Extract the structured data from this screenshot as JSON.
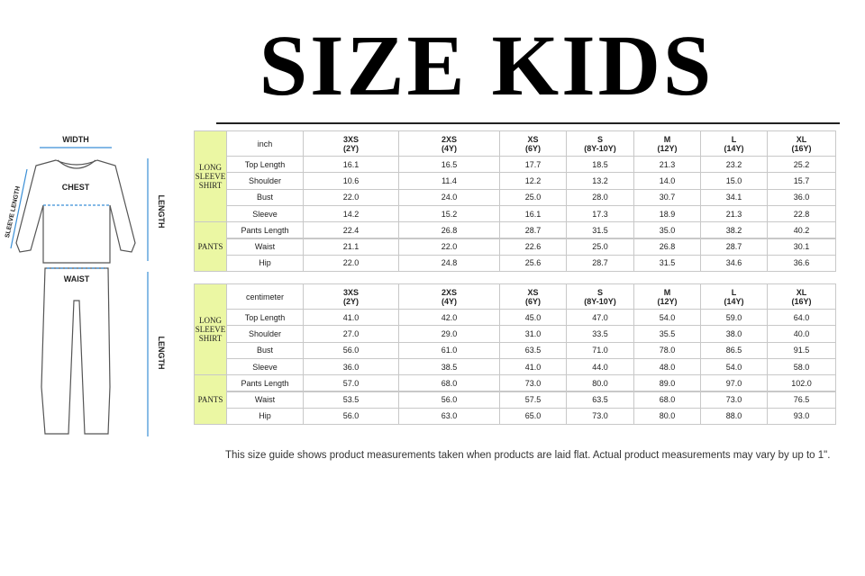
{
  "header": {
    "title": "SIZE KIDS"
  },
  "diagram": {
    "width": "WIDTH",
    "chest": "CHEST",
    "sleeve_length": "SLEEVE LENGTH",
    "shirt_length": "LENGTH",
    "waist": "WAIST",
    "pants_length": "LENGTH"
  },
  "tables": [
    {
      "unit": "inch",
      "sizes": [
        {
          "size": "3XS",
          "age": "(2Y)"
        },
        {
          "size": "2XS",
          "age": "(4Y)"
        },
        {
          "size": "XS",
          "age": "(6Y)"
        },
        {
          "size": "S",
          "age": "(8Y-10Y)"
        },
        {
          "size": "M",
          "age": "(12Y)"
        },
        {
          "size": "L",
          "age": "(14Y)"
        },
        {
          "size": "XL",
          "age": "(16Y)"
        }
      ],
      "groups": [
        {
          "label": "LONG SLEEVE SHIRT",
          "rows": [
            {
              "label": "Top Length",
              "values": [
                "16.1",
                "16.5",
                "17.7",
                "18.5",
                "21.3",
                "23.2",
                "25.2"
              ]
            },
            {
              "label": "Shoulder",
              "values": [
                "10.6",
                "11.4",
                "12.2",
                "13.2",
                "14.0",
                "15.0",
                "15.7"
              ]
            },
            {
              "label": "Bust",
              "values": [
                "22.0",
                "24.0",
                "25.0",
                "28.0",
                "30.7",
                "34.1",
                "36.0"
              ]
            },
            {
              "label": "Sleeve",
              "values": [
                "14.2",
                "15.2",
                "16.1",
                "17.3",
                "18.9",
                "21.3",
                "22.8"
              ]
            }
          ]
        },
        {
          "label": "PANTS",
          "rows": [
            {
              "label": "Pants Length",
              "values": [
                "22.4",
                "26.8",
                "28.7",
                "31.5",
                "35.0",
                "38.2",
                "40.2"
              ]
            },
            {
              "label": "Waist",
              "values": [
                "21.1",
                "22.0",
                "22.6",
                "25.0",
                "26.8",
                "28.7",
                "30.1"
              ]
            },
            {
              "label": "Hip",
              "values": [
                "22.0",
                "24.8",
                "25.6",
                "28.7",
                "31.5",
                "34.6",
                "36.6"
              ]
            }
          ]
        }
      ]
    },
    {
      "unit": "centimeter",
      "sizes": [
        {
          "size": "3XS",
          "age": "(2Y)"
        },
        {
          "size": "2XS",
          "age": "(4Y)"
        },
        {
          "size": "XS",
          "age": "(6Y)"
        },
        {
          "size": "S",
          "age": "(8Y-10Y)"
        },
        {
          "size": "M",
          "age": "(12Y)"
        },
        {
          "size": "L",
          "age": "(14Y)"
        },
        {
          "size": "XL",
          "age": "(16Y)"
        }
      ],
      "groups": [
        {
          "label": "LONG SLEEVE SHIRT",
          "rows": [
            {
              "label": "Top Length",
              "values": [
                "41.0",
                "42.0",
                "45.0",
                "47.0",
                "54.0",
                "59.0",
                "64.0"
              ]
            },
            {
              "label": "Shoulder",
              "values": [
                "27.0",
                "29.0",
                "31.0",
                "33.5",
                "35.5",
                "38.0",
                "40.0"
              ]
            },
            {
              "label": "Bust",
              "values": [
                "56.0",
                "61.0",
                "63.5",
                "71.0",
                "78.0",
                "86.5",
                "91.5"
              ]
            },
            {
              "label": "Sleeve",
              "values": [
                "36.0",
                "38.5",
                "41.0",
                "44.0",
                "48.0",
                "54.0",
                "58.0"
              ]
            }
          ]
        },
        {
          "label": "PANTS",
          "rows": [
            {
              "label": "Pants Length",
              "values": [
                "57.0",
                "68.0",
                "73.0",
                "80.0",
                "89.0",
                "97.0",
                "102.0"
              ]
            },
            {
              "label": "Waist",
              "values": [
                "53.5",
                "56.0",
                "57.5",
                "63.5",
                "68.0",
                "73.0",
                "76.5"
              ]
            },
            {
              "label": "Hip",
              "values": [
                "56.0",
                "63.0",
                "65.0",
                "73.0",
                "80.0",
                "88.0",
                "93.0"
              ]
            }
          ]
        }
      ]
    }
  ],
  "note": "This size guide shows product measurements taken when products are laid flat. Actual product measurements may vary by up to 1\"."
}
